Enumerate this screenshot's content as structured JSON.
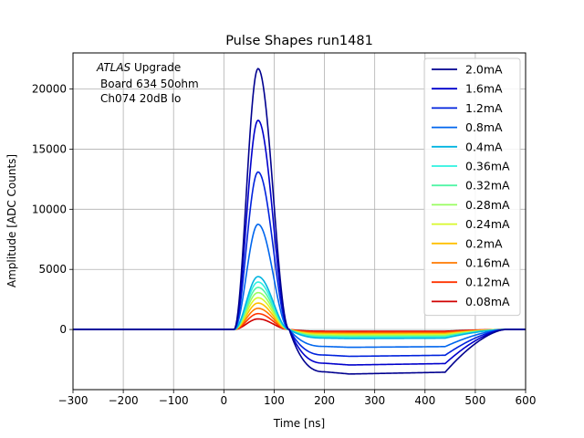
{
  "chart_data": {
    "type": "line",
    "title": "Pulse Shapes run1481",
    "xlabel": "Time [ns]",
    "ylabel": "Amplitude [ADC Counts]",
    "xlim": [
      -300,
      600
    ],
    "ylim": [
      -5000,
      23000
    ],
    "xticks": [
      -300,
      -200,
      -100,
      0,
      100,
      200,
      300,
      400,
      500,
      600
    ],
    "xtick_labels": [
      "−300",
      "−200",
      "−100",
      "0",
      "100",
      "200",
      "300",
      "400",
      "500",
      "600"
    ],
    "yticks": [
      0,
      5000,
      10000,
      15000,
      20000
    ],
    "ytick_labels": [
      "0",
      "5000",
      "10000",
      "15000",
      "20000"
    ],
    "grid": true,
    "legend_position": "top-right",
    "annotation": {
      "italic": "ATLAS",
      "line1_rest": " Upgrade",
      "line2": "Board 634 50ohm",
      "line3": "Ch074 20dB lo"
    },
    "pulse_model": {
      "baseline": 0,
      "rise_start_ns": 20,
      "peak_ns": 68,
      "zero_cross_ns": 130,
      "undershoot_flat_start_ns": 250,
      "undershoot_end_ns": 440,
      "recovery_end_ns": 560
    },
    "series": [
      {
        "name": "2.0mA",
        "color": "#00008f",
        "peak": 21700,
        "undershoot": -3700
      },
      {
        "name": "1.6mA",
        "color": "#0000cc",
        "peak": 17400,
        "undershoot": -2950
      },
      {
        "name": "1.2mA",
        "color": "#0022dd",
        "peak": 13100,
        "undershoot": -2230
      },
      {
        "name": "0.8mA",
        "color": "#0066ee",
        "peak": 8750,
        "undershoot": -1480
      },
      {
        "name": "0.4mA",
        "color": "#00b4e0",
        "peak": 4400,
        "undershoot": -750
      },
      {
        "name": "0.36mA",
        "color": "#2ef2e0",
        "peak": 3950,
        "undershoot": -670
      },
      {
        "name": "0.32mA",
        "color": "#52f5a6",
        "peak": 3500,
        "undershoot": -600
      },
      {
        "name": "0.28mA",
        "color": "#98fd60",
        "peak": 3070,
        "undershoot": -520
      },
      {
        "name": "0.24mA",
        "color": "#d8f82a",
        "peak": 2640,
        "undershoot": -450
      },
      {
        "name": "0.2mA",
        "color": "#ffc000",
        "peak": 2200,
        "undershoot": -370
      },
      {
        "name": "0.16mA",
        "color": "#ff7a00",
        "peak": 1760,
        "undershoot": -300
      },
      {
        "name": "0.12mA",
        "color": "#ff3400",
        "peak": 1320,
        "undershoot": -220
      },
      {
        "name": "0.08mA",
        "color": "#d00000",
        "peak": 880,
        "undershoot": -150
      }
    ]
  }
}
